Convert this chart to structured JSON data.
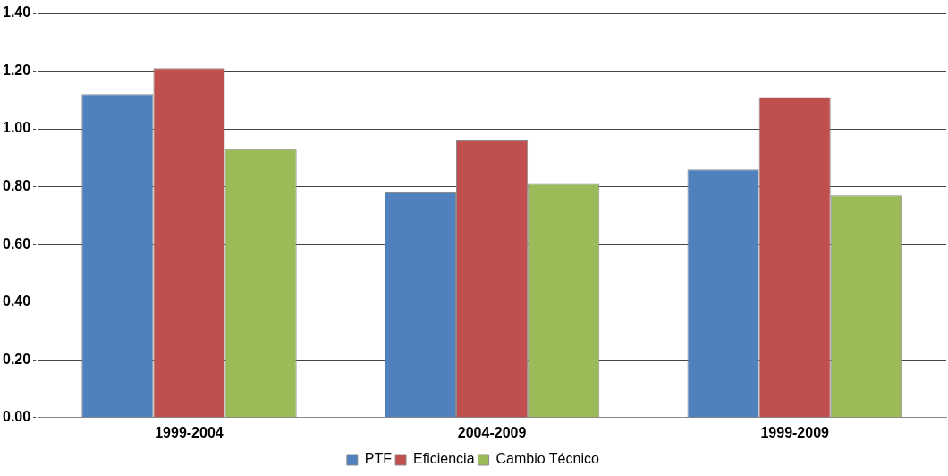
{
  "chart_data": {
    "type": "bar",
    "categories": [
      "1999-2004",
      "2004-2009",
      "1999-2009"
    ],
    "series": [
      {
        "name": "PTF",
        "color": "#4f81bd",
        "values": [
          1.12,
          0.78,
          0.86
        ]
      },
      {
        "name": "Eficiencia",
        "color": "#c0504d",
        "values": [
          1.21,
          0.96,
          1.11
        ]
      },
      {
        "name": "Cambio Técnico",
        "color": "#9bbb59",
        "values": [
          0.93,
          0.81,
          0.77
        ]
      }
    ],
    "ylim": [
      0,
      1.4
    ],
    "yticks": [
      {
        "value": 0,
        "label": "0.00"
      },
      {
        "value": 0.2,
        "label": "0.20"
      },
      {
        "value": 0.4,
        "label": "0.40"
      },
      {
        "value": 0.6,
        "label": "0.60"
      },
      {
        "value": 0.8,
        "label": "0.80"
      },
      {
        "value": 1,
        "label": "1.00"
      },
      {
        "value": 1.2,
        "label": "1.20"
      },
      {
        "value": 1.4,
        "label": "1.40"
      }
    ],
    "grid": "y",
    "legend": "bottom"
  }
}
